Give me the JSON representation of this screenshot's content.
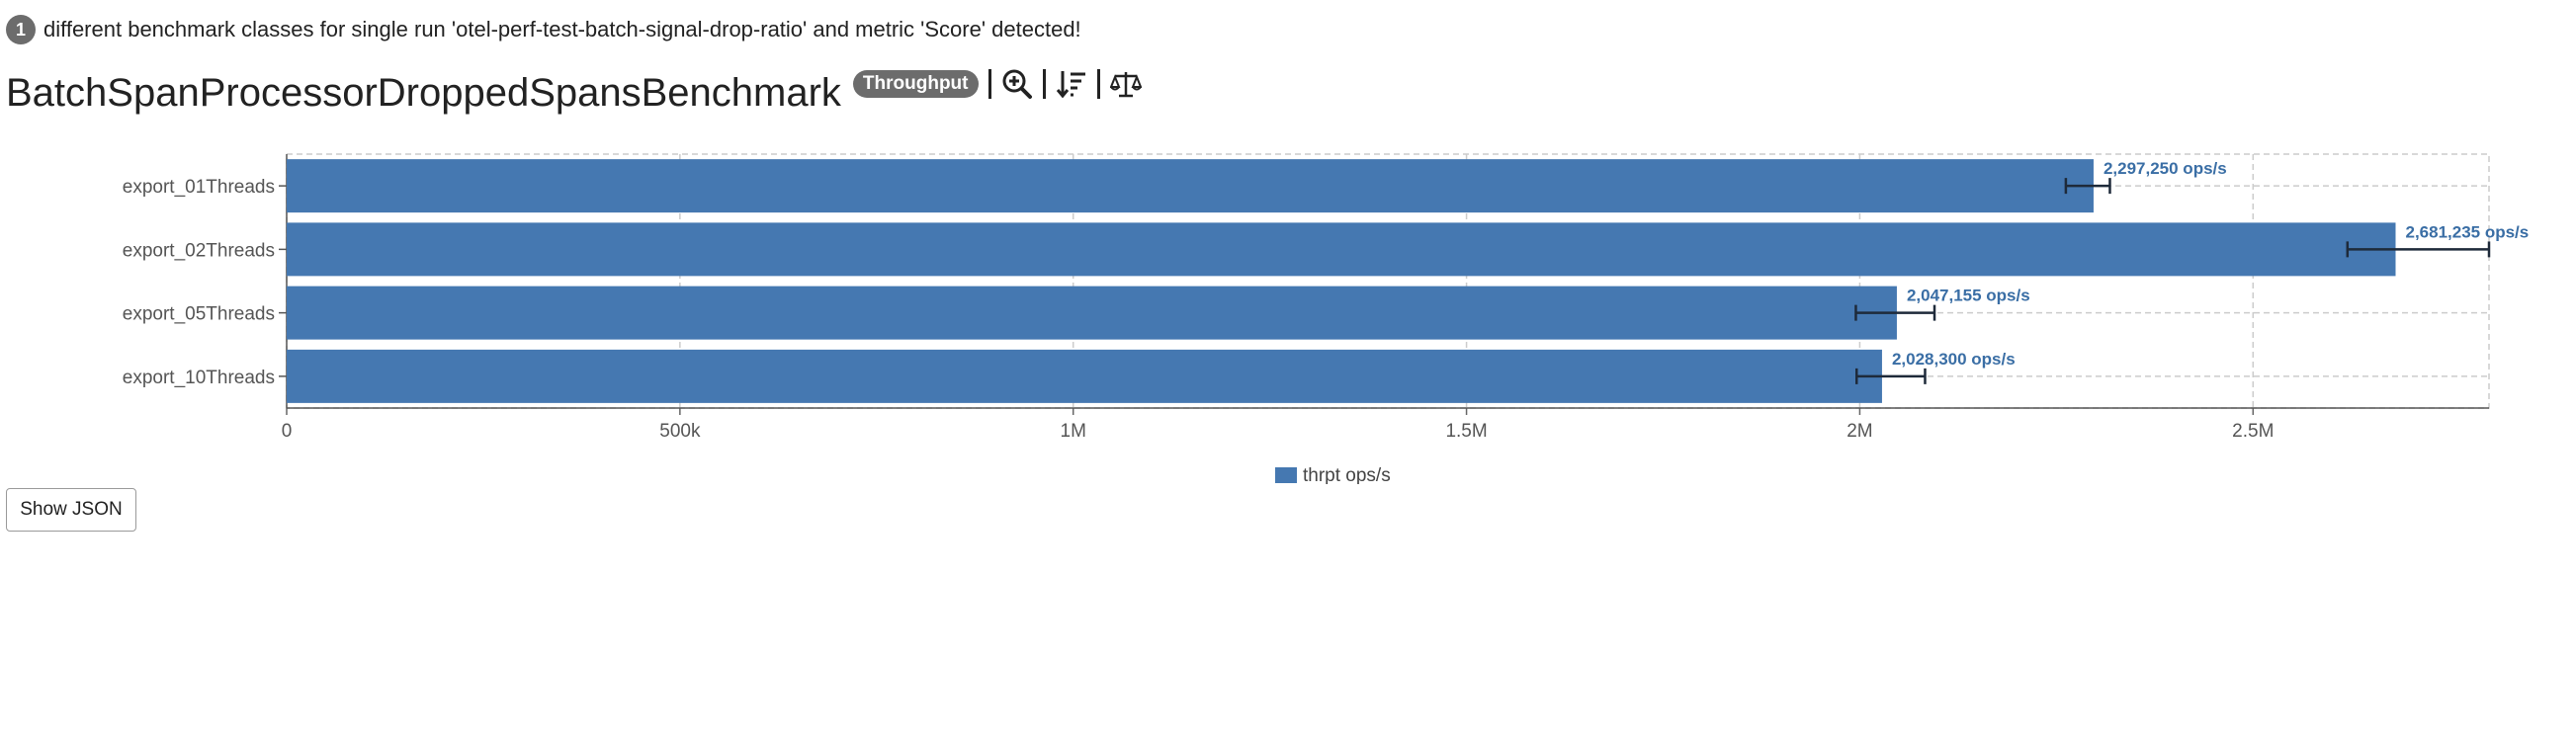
{
  "notice": {
    "count": "1",
    "text": "different benchmark classes for single run 'otel-perf-test-batch-signal-drop-ratio' and metric 'Score' detected!"
  },
  "header": {
    "title": "BatchSpanProcessorDroppedSpansBenchmark",
    "badge": "Throughput",
    "tools": [
      "zoom-in-icon",
      "sort-icon",
      "compare-scale-icon"
    ]
  },
  "chart_data": {
    "type": "bar",
    "orientation": "horizontal",
    "categories": [
      "export_01Threads",
      "export_02Threads",
      "export_05Threads",
      "export_10Threads"
    ],
    "series": [
      {
        "name": "thrpt ops/s",
        "values": [
          2297250,
          2681235,
          2047155,
          2028300
        ],
        "error_low": [
          2262000,
          2620000,
          1995000,
          1996000
        ],
        "error_high": [
          2318000,
          2800000,
          2095000,
          2083000
        ],
        "data_labels": [
          "2,297,250 ops/s",
          "2,681,235 ops/s",
          "2,047,155 ops/s",
          "2,028,300 ops/s"
        ],
        "color": "#4578b1"
      }
    ],
    "xlim": [
      0,
      2800000
    ],
    "xticks": [
      0,
      500000,
      1000000,
      1500000,
      2000000,
      2500000
    ],
    "xtick_labels": [
      "0",
      "500k",
      "1M",
      "1.5M",
      "2M",
      "2.5M"
    ],
    "grid": true,
    "legend_position": "bottom"
  },
  "footer": {
    "show_json_label": "Show JSON"
  }
}
